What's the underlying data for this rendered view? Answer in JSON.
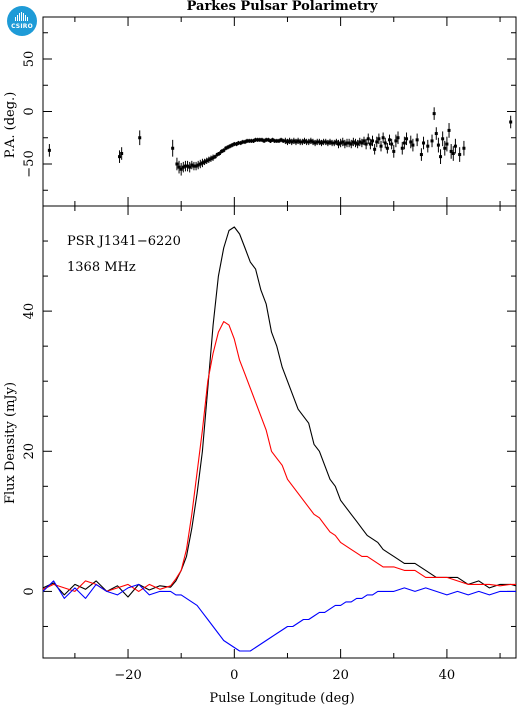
{
  "logo": {
    "text": "CSIRO",
    "color": "#1e9bd7"
  },
  "chart_data": [
    {
      "type": "scatter",
      "title": "Parkes Pulsar Polarimetry",
      "xlabel": "",
      "ylabel": "P.A. (deg.)",
      "xlim": [
        -36,
        53
      ],
      "ylim": [
        -90,
        90
      ],
      "yticks": [
        -50,
        0,
        50
      ],
      "error_bars": true,
      "series": [
        {
          "color": "#000000",
          "points": [
            [
              -34.8,
              -37,
              6
            ],
            [
              -21.6,
              -43,
              6
            ],
            [
              -21.2,
              -40,
              6
            ],
            [
              -17.8,
              -25,
              7
            ],
            [
              -11.6,
              -35,
              8
            ],
            [
              -10.8,
              -50,
              6
            ],
            [
              -10.4,
              -53,
              6
            ],
            [
              -10.0,
              -55,
              6
            ],
            [
              -9.6,
              -53,
              5
            ],
            [
              -9.2,
              -52,
              5
            ],
            [
              -8.8,
              -52,
              5
            ],
            [
              -8.4,
              -53,
              5
            ],
            [
              -8.0,
              -51,
              4
            ],
            [
              -7.6,
              -52,
              4
            ],
            [
              -7.2,
              -52,
              4
            ],
            [
              -6.8,
              -51,
              4
            ],
            [
              -6.4,
              -50,
              4
            ],
            [
              -6.0,
              -49,
              4
            ],
            [
              -5.6,
              -48,
              3
            ],
            [
              -5.2,
              -47,
              3
            ],
            [
              -4.8,
              -46,
              3
            ],
            [
              -4.4,
              -45,
              3
            ],
            [
              -4.0,
              -44,
              3
            ],
            [
              -3.6,
              -43,
              2
            ],
            [
              -3.2,
              -41,
              2
            ],
            [
              -2.8,
              -40,
              2
            ],
            [
              -2.4,
              -38,
              2
            ],
            [
              -2.0,
              -37,
              2
            ],
            [
              -1.6,
              -35,
              2
            ],
            [
              -1.2,
              -34,
              2
            ],
            [
              -0.8,
              -33,
              2
            ],
            [
              -0.4,
              -32,
              2
            ],
            [
              0.0,
              -31,
              2
            ],
            [
              0.4,
              -31,
              2
            ],
            [
              0.8,
              -30,
              2
            ],
            [
              1.2,
              -30,
              2
            ],
            [
              1.6,
              -29,
              2
            ],
            [
              2.0,
              -29,
              2
            ],
            [
              2.4,
              -28,
              2
            ],
            [
              2.8,
              -28,
              2
            ],
            [
              3.2,
              -28,
              2
            ],
            [
              3.6,
              -28,
              2
            ],
            [
              4.0,
              -27,
              2
            ],
            [
              4.4,
              -27,
              2
            ],
            [
              4.8,
              -27,
              2
            ],
            [
              5.2,
              -27,
              2
            ],
            [
              5.6,
              -28,
              2
            ],
            [
              6.0,
              -27,
              2
            ],
            [
              6.4,
              -27,
              2
            ],
            [
              6.8,
              -28,
              2
            ],
            [
              7.2,
              -27,
              2
            ],
            [
              7.6,
              -28,
              2
            ],
            [
              8.0,
              -28,
              2
            ],
            [
              8.4,
              -28,
              2
            ],
            [
              8.8,
              -27,
              2
            ],
            [
              9.2,
              -28,
              2
            ],
            [
              9.6,
              -28,
              3
            ],
            [
              10.0,
              -29,
              3
            ],
            [
              10.4,
              -28,
              3
            ],
            [
              10.8,
              -29,
              3
            ],
            [
              11.2,
              -28,
              3
            ],
            [
              11.6,
              -29,
              3
            ],
            [
              12.0,
              -28,
              3
            ],
            [
              12.4,
              -29,
              3
            ],
            [
              12.8,
              -29,
              3
            ],
            [
              13.2,
              -28,
              3
            ],
            [
              13.6,
              -29,
              3
            ],
            [
              14.0,
              -29,
              3
            ],
            [
              14.4,
              -28,
              3
            ],
            [
              14.8,
              -29,
              3
            ],
            [
              15.2,
              -30,
              3
            ],
            [
              15.6,
              -29,
              3
            ],
            [
              16.0,
              -29,
              3
            ],
            [
              16.4,
              -30,
              3
            ],
            [
              16.8,
              -29,
              3
            ],
            [
              17.2,
              -29,
              3
            ],
            [
              17.6,
              -30,
              3
            ],
            [
              18.0,
              -29,
              3
            ],
            [
              18.4,
              -30,
              3
            ],
            [
              18.8,
              -30,
              3
            ],
            [
              19.2,
              -29,
              3
            ],
            [
              19.6,
              -31,
              4
            ],
            [
              20.0,
              -30,
              4
            ],
            [
              20.4,
              -29,
              4
            ],
            [
              20.8,
              -31,
              4
            ],
            [
              21.2,
              -30,
              4
            ],
            [
              21.6,
              -30,
              4
            ],
            [
              22.0,
              -31,
              4
            ],
            [
              22.4,
              -29,
              4
            ],
            [
              22.8,
              -30,
              4
            ],
            [
              23.2,
              -31,
              4
            ],
            [
              23.6,
              -29,
              4
            ],
            [
              24.0,
              -30,
              4
            ],
            [
              24.4,
              -28,
              4
            ],
            [
              24.8,
              -31,
              5
            ],
            [
              25.2,
              -26,
              5
            ],
            [
              25.6,
              -31,
              5
            ],
            [
              26.0,
              -28,
              5
            ],
            [
              26.4,
              -36,
              5
            ],
            [
              26.8,
              -29,
              5
            ],
            [
              27.2,
              -26,
              5
            ],
            [
              27.6,
              -33,
              5
            ],
            [
              28.0,
              -25,
              5
            ],
            [
              28.4,
              -30,
              5
            ],
            [
              28.8,
              -35,
              5
            ],
            [
              29.2,
              -27,
              5
            ],
            [
              29.6,
              -31,
              5
            ],
            [
              30.0,
              -38,
              6
            ],
            [
              30.4,
              -28,
              6
            ],
            [
              30.8,
              -25,
              6
            ],
            [
              31.6,
              -35,
              6
            ],
            [
              32.0,
              -30,
              6
            ],
            [
              32.4,
              -26,
              6
            ],
            [
              33.2,
              -29,
              6
            ],
            [
              33.6,
              -32,
              6
            ],
            [
              34.4,
              -27,
              6
            ],
            [
              35.2,
              -41,
              6
            ],
            [
              35.6,
              -30,
              6
            ],
            [
              36.4,
              -33,
              6
            ],
            [
              37.2,
              -28,
              6
            ],
            [
              37.6,
              -2,
              6
            ],
            [
              38.0,
              -21,
              6
            ],
            [
              38.4,
              -32,
              7
            ],
            [
              38.8,
              -43,
              7
            ],
            [
              39.2,
              -26,
              7
            ],
            [
              39.6,
              -35,
              7
            ],
            [
              40.0,
              -31,
              7
            ],
            [
              40.4,
              -18,
              7
            ],
            [
              40.8,
              -38,
              7
            ],
            [
              41.2,
              -40,
              7
            ],
            [
              41.6,
              -33,
              7
            ],
            [
              42.4,
              -41,
              7
            ],
            [
              43.2,
              -35,
              7
            ],
            [
              52.0,
              -10,
              6
            ]
          ]
        }
      ]
    },
    {
      "type": "line",
      "title": "",
      "xlabel": "Pulse Longitude (deg)",
      "ylabel": "Flux Density (mJy)",
      "xlim": [
        -36,
        53
      ],
      "ylim": [
        -9.5,
        55
      ],
      "xticks": [
        -20,
        0,
        20,
        40
      ],
      "yticks": [
        0,
        20,
        40
      ],
      "annotations": [
        "PSR J1341−6220",
        "1368 MHz"
      ],
      "x": [
        -36,
        -34,
        -32,
        -30,
        -28,
        -26,
        -24,
        -22,
        -20,
        -18,
        -16,
        -14,
        -12,
        -11,
        -10,
        -9,
        -8,
        -7,
        -6,
        -5,
        -4,
        -3,
        -2,
        -1,
        0,
        1,
        2,
        3,
        4,
        5,
        6,
        7,
        8,
        9,
        10,
        11,
        12,
        13,
        14,
        15,
        16,
        17,
        18,
        19,
        20,
        21,
        22,
        23,
        24,
        25,
        26,
        27,
        28,
        29,
        30,
        32,
        34,
        36,
        38,
        40,
        42,
        44,
        46,
        48,
        50,
        52,
        53
      ],
      "series": [
        {
          "color": "#000000",
          "values": [
            0.5,
            1.2,
            -0.5,
            1.0,
            0.3,
            1.5,
            0.0,
            0.8,
            -0.8,
            1.0,
            0.2,
            0.8,
            0.6,
            1.5,
            3.0,
            5.0,
            9.0,
            14.0,
            20.0,
            29.0,
            38.0,
            45.0,
            49.0,
            51.5,
            52.0,
            51.0,
            49.0,
            47.0,
            46.0,
            43.0,
            41.0,
            37.0,
            35.0,
            32.0,
            30.0,
            28.0,
            26.0,
            25.0,
            24.0,
            21.0,
            20.0,
            18.0,
            16.0,
            15.0,
            13.0,
            12.0,
            11.0,
            10.0,
            9.0,
            8.0,
            7.5,
            7.0,
            6.0,
            5.5,
            5.0,
            4.0,
            4.0,
            3.0,
            2.0,
            2.0,
            2.0,
            1.0,
            1.5,
            0.5,
            1.0,
            1.0,
            0.8
          ]
        },
        {
          "color": "#ff0000",
          "values": [
            0.3,
            1.0,
            0.5,
            0.0,
            1.5,
            1.0,
            0.0,
            0.5,
            1.0,
            0.0,
            1.0,
            0.3,
            0.8,
            1.8,
            3.0,
            6.0,
            11.0,
            17.0,
            23.0,
            30.0,
            34.0,
            37.0,
            38.5,
            38.0,
            36.0,
            33.0,
            31.0,
            29.0,
            27.0,
            25.0,
            23.0,
            20.0,
            19.0,
            18.0,
            16.0,
            15.0,
            14.0,
            13.0,
            12.0,
            11.0,
            10.5,
            9.5,
            8.5,
            8.0,
            7.0,
            6.5,
            6.0,
            5.5,
            5.0,
            5.0,
            4.5,
            4.0,
            3.5,
            3.5,
            3.5,
            3.0,
            3.0,
            2.0,
            2.0,
            2.0,
            1.5,
            1.0,
            1.0,
            1.0,
            0.8,
            1.0,
            1.0
          ]
        },
        {
          "color": "#0000ff",
          "values": [
            0.0,
            1.5,
            -1.0,
            0.5,
            -1.0,
            1.0,
            0.0,
            -0.5,
            0.5,
            1.0,
            -0.5,
            0.0,
            0.0,
            -0.5,
            -0.5,
            -1.0,
            -1.5,
            -2.0,
            -3.0,
            -4.0,
            -5.0,
            -6.0,
            -7.0,
            -7.5,
            -8.0,
            -8.5,
            -8.5,
            -8.5,
            -8.0,
            -7.5,
            -7.0,
            -6.5,
            -6.0,
            -5.5,
            -5.0,
            -5.0,
            -4.5,
            -4.0,
            -4.0,
            -3.5,
            -3.0,
            -3.0,
            -2.5,
            -2.0,
            -2.0,
            -1.5,
            -1.5,
            -1.0,
            -1.0,
            -0.5,
            -0.5,
            0.0,
            0.0,
            0.0,
            0.0,
            0.5,
            0.0,
            0.5,
            0.0,
            -0.5,
            0.0,
            -0.5,
            0.0,
            -0.5,
            0.0,
            0.0,
            0.0
          ]
        }
      ]
    }
  ]
}
